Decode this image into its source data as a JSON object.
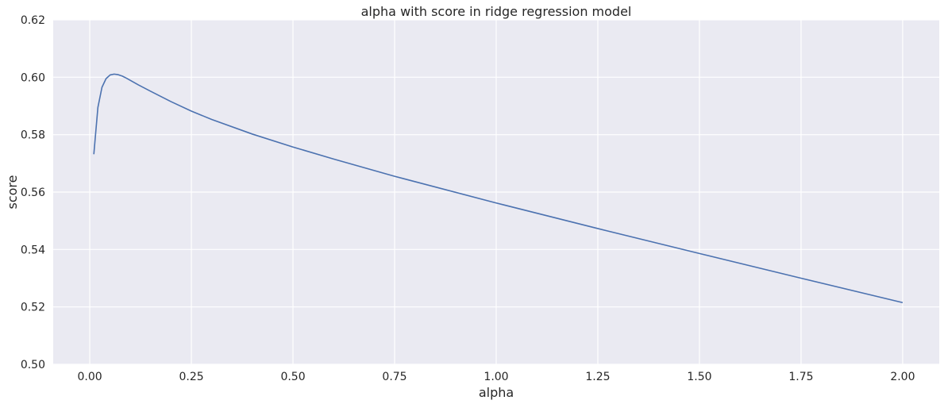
{
  "chart_data": {
    "type": "line",
    "title": "alpha with score in ridge regression model",
    "xlabel": "alpha",
    "ylabel": "score",
    "xlim": [
      -0.09,
      2.09
    ],
    "ylim": [
      0.5,
      0.62
    ],
    "xticks": [
      0.0,
      0.25,
      0.5,
      0.75,
      1.0,
      1.25,
      1.5,
      1.75,
      2.0
    ],
    "xtick_labels": [
      "0.00",
      "0.25",
      "0.50",
      "0.75",
      "1.00",
      "1.25",
      "1.50",
      "1.75",
      "2.00"
    ],
    "yticks": [
      0.5,
      0.52,
      0.54,
      0.56,
      0.58,
      0.6,
      0.62
    ],
    "ytick_labels": [
      "0.50",
      "0.52",
      "0.54",
      "0.56",
      "0.58",
      "0.60",
      "0.62"
    ],
    "grid": true,
    "background": "#eaeaf2",
    "grid_color": "#ffffff",
    "series": [
      {
        "color": "#4c72b0",
        "x": [
          0.01,
          0.02,
          0.03,
          0.04,
          0.05,
          0.06,
          0.07,
          0.08,
          0.09,
          0.1,
          0.12,
          0.15,
          0.2,
          0.25,
          0.3,
          0.4,
          0.5,
          0.6,
          0.75,
          1.0,
          1.25,
          1.5,
          1.75,
          2.0
        ],
        "y": [
          0.5732,
          0.5895,
          0.5965,
          0.5995,
          0.6008,
          0.6011,
          0.6009,
          0.6004,
          0.5997,
          0.5989,
          0.5973,
          0.5951,
          0.5915,
          0.5882,
          0.5853,
          0.5802,
          0.5757,
          0.5715,
          0.5655,
          0.5562,
          0.5473,
          0.5386,
          0.53,
          0.5215
        ]
      }
    ]
  }
}
